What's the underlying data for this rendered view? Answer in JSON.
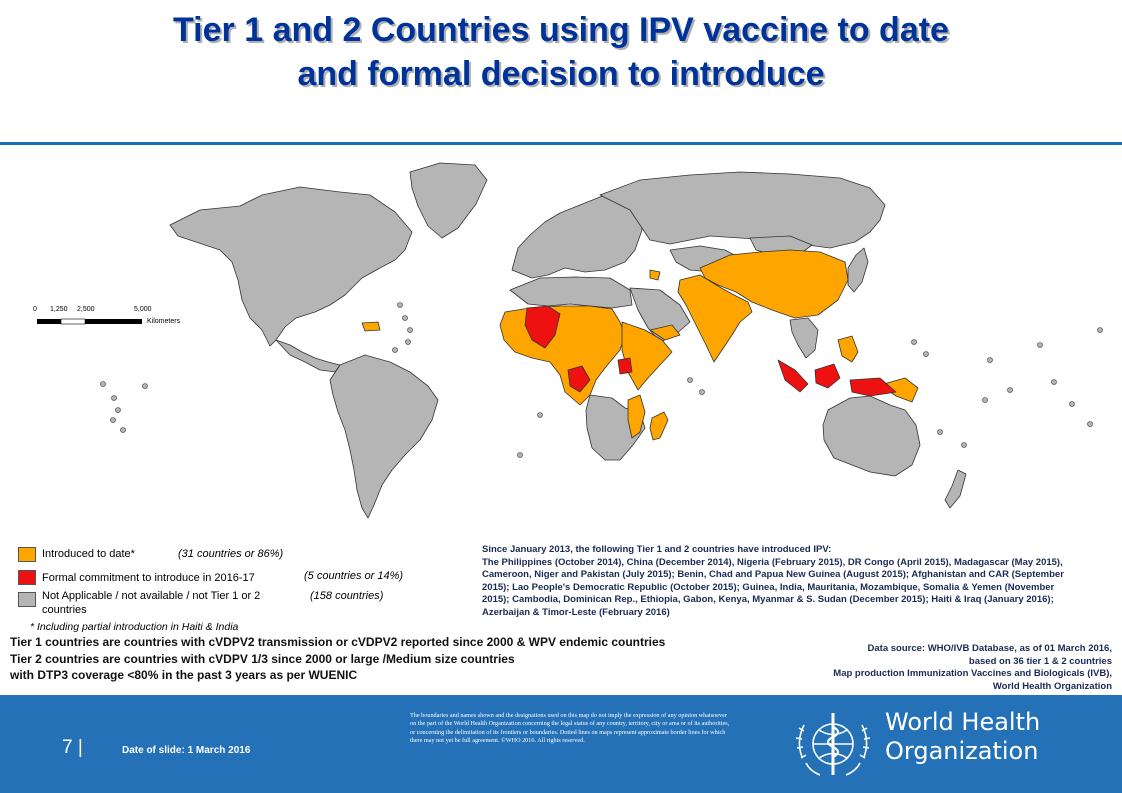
{
  "title": {
    "line1": "Tier 1 and 2 Countries using IPV vaccine to date",
    "line2": "and formal decision to introduce"
  },
  "colors": {
    "introduced": "#ffa500",
    "formal_commitment": "#ee1111",
    "not_applicable": "#b5b5b5",
    "ocean": "#ffffff",
    "title": "#003399",
    "footer": "#2471b7"
  },
  "scale_bar": {
    "ticks": [
      "0",
      "1,250",
      "2,500",
      "5,000"
    ],
    "unit": "Kilometers"
  },
  "legend": [
    {
      "label": "Introduced to date*",
      "count": "(31 countries or 86%)",
      "color": "#ffa500"
    },
    {
      "label": "Formal commitment to introduce in 2016-17",
      "count": "(5 countries or 14%)",
      "color": "#ee1111"
    },
    {
      "label": "Not Applicable / not available / not Tier 1 or 2",
      "label2": "countries",
      "count": "(158 countries)",
      "color": "#b5b5b5"
    }
  ],
  "legend_note": "* Including partial introduction in Haiti & India",
  "since_text": {
    "heading": "Since January 2013, the following Tier 1 and 2 countries have introduced IPV:",
    "body": "The Philippines (October 2014), China (December 2014), Nigeria (February 2015), DR Congo (April 2015), Madagascar (May 2015), Cameroon, Niger and Pakistan (July 2015); Benin, Chad and Papua New Guinea (August 2015); Afghanistan and CAR (September 2015); Lao People's Democratic Republic (October 2015); Guinea, India, Mauritania, Mozambique, Somalia & Yemen (November 2015); Cambodia, Dominican Rep., Ethiopia, Gabon, Kenya, Myanmar & S. Sudan (December 2015); Haiti & Iraq (January 2016); Azerbaijan & Timor-Leste (February 2016)"
  },
  "tier_definitions": [
    "Tier 1 countries are countries with cVDPV2 transmission or cVDPV2 reported since 2000 & WPV endemic countries",
    "Tier 2 countries are countries with cVDPV 1/3 since 2000 or large /Medium size countries",
    "with DTP3 coverage <80% in the past 3 years as per WUENIC"
  ],
  "data_source": [
    "Data source: WHO/IVB Database, as of 01 March 2016,",
    "based on 36 tier 1 & 2 countries",
    "Map production Immunization Vaccines and Biologicals (IVB),",
    "World Health Organization"
  ],
  "footer": {
    "slide_number": "7 |",
    "date": "Date of slide: 1 March 2016",
    "disclaimer": "The boundaries and names shown and the designations used on this map do not imply the expression of any opinion whatsoever on the part of the World Health Organization concerning the legal status of any country, territory, city or area or of its authorities, or concerning the delimitation of its frontiers or boundaries. Dotted lines on maps represent approximate border lines for which there may not yet be full agreement. ©WHO 2016. All rights reserved.",
    "org_line1": "World Health",
    "org_line2": "Organization"
  }
}
